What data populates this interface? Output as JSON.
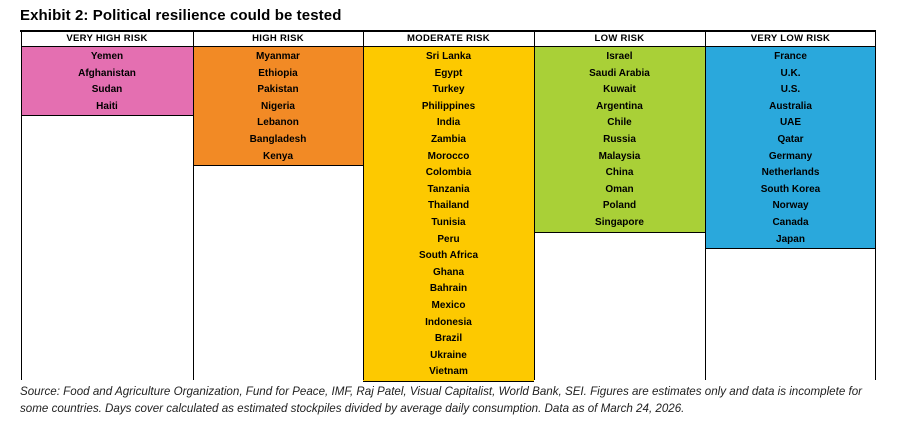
{
  "title": "Exhibit 2: Political resilience could be tested",
  "columns": [
    {
      "header": "VERY HIGH RISK",
      "color": "#e46fb1",
      "countries": [
        "Yemen",
        "Afghanistan",
        "Sudan",
        "Haiti"
      ]
    },
    {
      "header": "HIGH RISK",
      "color": "#f28a25",
      "countries": [
        "Myanmar",
        "Ethiopia",
        "Pakistan",
        "Nigeria",
        "Lebanon",
        "Bangladesh",
        "Kenya"
      ]
    },
    {
      "header": "MODERATE RISK",
      "color": "#fdc900",
      "countries": [
        "Sri Lanka",
        "Egypt",
        "Turkey",
        "Philippines",
        "India",
        "Zambia",
        "Morocco",
        "Colombia",
        "Tanzania",
        "Thailand",
        "Tunisia",
        "Peru",
        "South Africa",
        "Ghana",
        "Bahrain",
        "Mexico",
        "Indonesia",
        "Brazil",
        "Ukraine",
        "Vietnam"
      ]
    },
    {
      "header": "LOW RISK",
      "color": "#a9d037",
      "countries": [
        "Israel",
        "Saudi Arabia",
        "Kuwait",
        "Argentina",
        "Chile",
        "Russia",
        "Malaysia",
        "China",
        "Oman",
        "Poland",
        "Singapore"
      ]
    },
    {
      "header": "VERY LOW RISK",
      "color": "#2aa8dc",
      "countries": [
        "France",
        "U.K.",
        "U.S.",
        "Australia",
        "UAE",
        "Qatar",
        "Germany",
        "Netherlands",
        "South Korea",
        "Norway",
        "Canada",
        "Japan"
      ]
    }
  ],
  "source": "Source: Food and Agriculture Organization, Fund for Peace, IMF, Raj Patel, Visual Capitalist, World Bank, SEI. Figures are estimates only and data is incomplete for some countries. Days cover calculated as estimated stockpiles divided by average daily consumption. Data as of March 24, 2026."
}
